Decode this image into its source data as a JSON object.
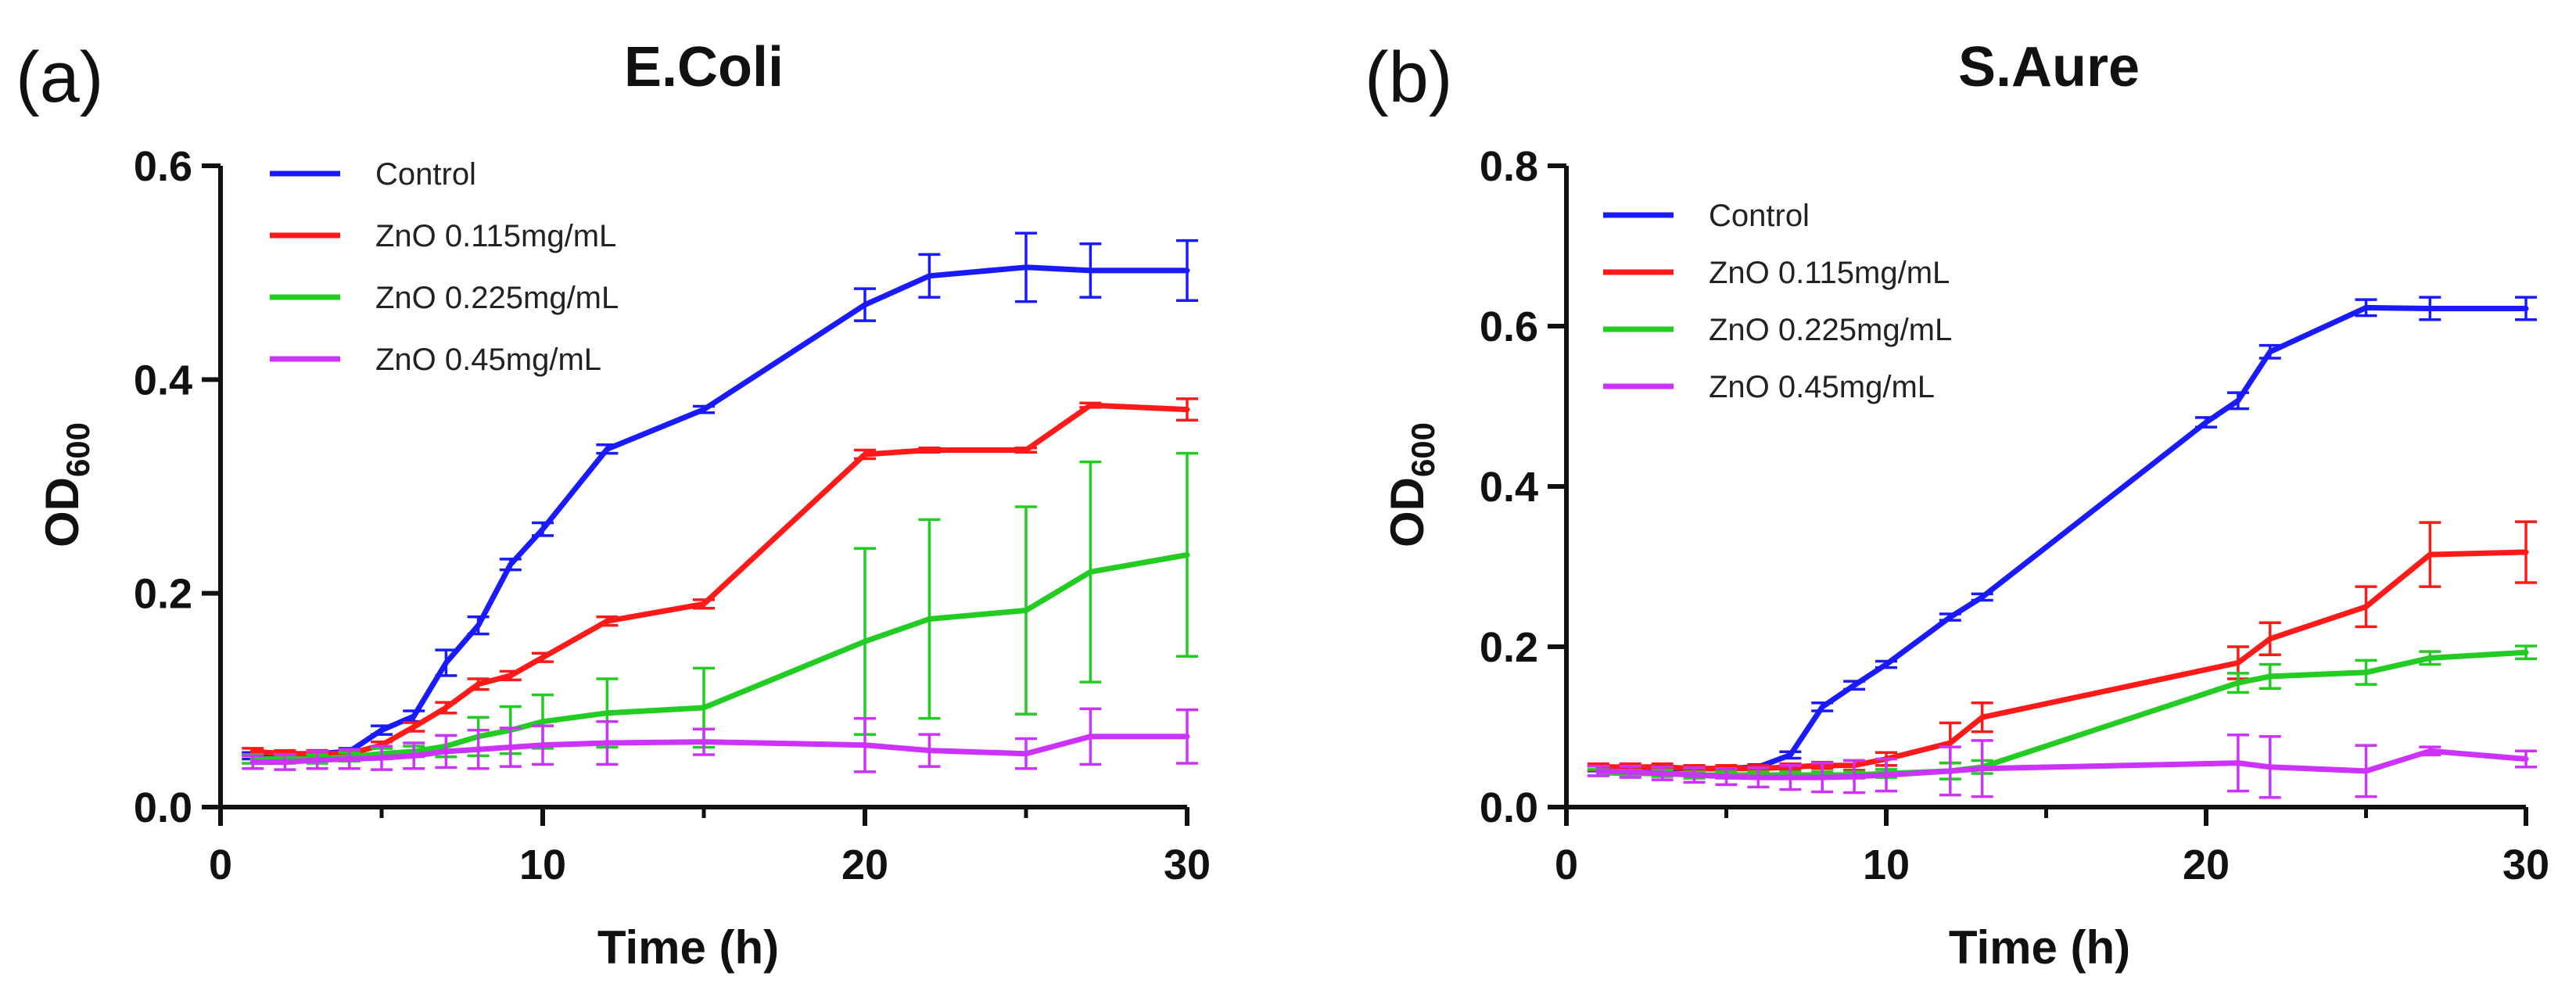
{
  "chart_data": [
    {
      "type": "line",
      "panel_label": "(a)",
      "title": "E.Coli",
      "xlabel": "Time (h)",
      "ylabel": "OD",
      "ylabel_sub": "600",
      "xlim": [
        0,
        30
      ],
      "ylim": [
        0,
        0.6
      ],
      "xticks": [
        0,
        10,
        20,
        30
      ],
      "yticks": [
        0.0,
        0.2,
        0.4,
        0.6
      ],
      "xtick_labels": [
        "0",
        "10",
        "20",
        "30"
      ],
      "ytick_labels": [
        "0.0",
        "0.2",
        "0.4",
        "0.6"
      ],
      "legend_position": "top-left",
      "series": [
        {
          "name": "Control",
          "color": "#1a1aff",
          "x": [
            1,
            2,
            3,
            4,
            5,
            6,
            7,
            8,
            9,
            10,
            12,
            15,
            20,
            22,
            25,
            27,
            30
          ],
          "y": [
            0.048,
            0.048,
            0.05,
            0.052,
            0.072,
            0.085,
            0.135,
            0.17,
            0.227,
            0.26,
            0.335,
            0.372,
            0.47,
            0.497,
            0.505,
            0.502,
            0.502
          ],
          "err": [
            0.003,
            0.003,
            0.003,
            0.003,
            0.004,
            0.005,
            0.012,
            0.008,
            0.005,
            0.006,
            0.004,
            0.003,
            0.015,
            0.02,
            0.032,
            0.025,
            0.028
          ]
        },
        {
          "name": "ZnO 0.115mg/mL",
          "color": "#ff1a1a",
          "x": [
            1,
            2,
            3,
            4,
            5,
            6,
            7,
            8,
            9,
            10,
            12,
            15,
            20,
            22,
            25,
            27,
            30
          ],
          "y": [
            0.052,
            0.05,
            0.05,
            0.05,
            0.058,
            0.075,
            0.093,
            0.115,
            0.123,
            0.14,
            0.174,
            0.19,
            0.33,
            0.334,
            0.334,
            0.376,
            0.372
          ],
          "err": [
            0.003,
            0.003,
            0.003,
            0.003,
            0.003,
            0.004,
            0.005,
            0.005,
            0.004,
            0.004,
            0.004,
            0.004,
            0.004,
            0.002,
            0.002,
            0.002,
            0.01
          ]
        },
        {
          "name": "ZnO 0.225mg/mL",
          "color": "#22cc22",
          "x": [
            1,
            2,
            3,
            4,
            5,
            6,
            7,
            8,
            9,
            10,
            12,
            15,
            20,
            22,
            25,
            27,
            30
          ],
          "y": [
            0.045,
            0.045,
            0.045,
            0.047,
            0.05,
            0.052,
            0.057,
            0.066,
            0.072,
            0.08,
            0.088,
            0.093,
            0.155,
            0.176,
            0.184,
            0.22,
            0.236
          ],
          "err": [
            0.004,
            0.004,
            0.004,
            0.004,
            0.005,
            0.005,
            0.01,
            0.018,
            0.022,
            0.025,
            0.032,
            0.037,
            0.087,
            0.093,
            0.097,
            0.103,
            0.095
          ]
        },
        {
          "name": "ZnO 0.45mg/mL",
          "color": "#cc33ff",
          "x": [
            1,
            2,
            3,
            4,
            5,
            6,
            7,
            8,
            9,
            10,
            12,
            15,
            20,
            22,
            25,
            27,
            30
          ],
          "y": [
            0.042,
            0.042,
            0.044,
            0.045,
            0.046,
            0.048,
            0.052,
            0.054,
            0.056,
            0.058,
            0.06,
            0.061,
            0.058,
            0.053,
            0.05,
            0.066,
            0.066
          ],
          "err": [
            0.006,
            0.007,
            0.008,
            0.009,
            0.011,
            0.012,
            0.015,
            0.018,
            0.018,
            0.018,
            0.02,
            0.012,
            0.025,
            0.015,
            0.014,
            0.026,
            0.025
          ]
        }
      ]
    },
    {
      "type": "line",
      "panel_label": "(b)",
      "title": "S.Aure",
      "xlabel": "Time (h)",
      "ylabel": "OD",
      "ylabel_sub": "600",
      "xlim": [
        0,
        30
      ],
      "ylim": [
        0,
        0.8
      ],
      "xticks": [
        0,
        10,
        20,
        30
      ],
      "yticks": [
        0.0,
        0.2,
        0.4,
        0.6,
        0.8
      ],
      "xtick_labels": [
        "0",
        "10",
        "20",
        "30"
      ],
      "ytick_labels": [
        "0.0",
        "0.2",
        "0.4",
        "0.6",
        "0.8"
      ],
      "legend_position": "top-left",
      "series": [
        {
          "name": "Control",
          "color": "#1a1aff",
          "x": [
            1,
            2,
            3,
            4,
            5,
            6,
            7,
            8,
            9,
            10,
            12,
            13,
            20,
            21,
            22,
            25,
            27,
            30
          ],
          "y": [
            0.048,
            0.048,
            0.048,
            0.048,
            0.048,
            0.05,
            0.065,
            0.125,
            0.152,
            0.178,
            0.237,
            0.262,
            0.48,
            0.507,
            0.568,
            0.623,
            0.622,
            0.622
          ],
          "err": [
            0.003,
            0.003,
            0.003,
            0.003,
            0.003,
            0.003,
            0.004,
            0.005,
            0.005,
            0.004,
            0.004,
            0.004,
            0.006,
            0.01,
            0.008,
            0.01,
            0.014,
            0.014
          ]
        },
        {
          "name": "ZnO 0.115mg/mL",
          "color": "#ff1a1a",
          "x": [
            1,
            2,
            3,
            4,
            5,
            6,
            7,
            8,
            9,
            10,
            12,
            13,
            21,
            22,
            25,
            27,
            30
          ],
          "y": [
            0.05,
            0.05,
            0.05,
            0.048,
            0.048,
            0.048,
            0.05,
            0.052,
            0.052,
            0.06,
            0.08,
            0.112,
            0.18,
            0.21,
            0.25,
            0.315,
            0.318
          ],
          "err": [
            0.004,
            0.004,
            0.004,
            0.004,
            0.004,
            0.004,
            0.004,
            0.004,
            0.006,
            0.008,
            0.025,
            0.018,
            0.02,
            0.02,
            0.025,
            0.04,
            0.038
          ]
        },
        {
          "name": "ZnO 0.225mg/mL",
          "color": "#22cc22",
          "x": [
            1,
            2,
            3,
            4,
            5,
            6,
            7,
            8,
            9,
            10,
            12,
            13,
            21,
            22,
            25,
            27,
            30
          ],
          "y": [
            0.043,
            0.042,
            0.042,
            0.04,
            0.04,
            0.04,
            0.04,
            0.04,
            0.04,
            0.042,
            0.045,
            0.05,
            0.155,
            0.163,
            0.168,
            0.186,
            0.193
          ],
          "err": [
            0.004,
            0.004,
            0.004,
            0.004,
            0.004,
            0.004,
            0.004,
            0.004,
            0.004,
            0.005,
            0.01,
            0.008,
            0.012,
            0.015,
            0.015,
            0.008,
            0.008
          ]
        },
        {
          "name": "ZnO 0.45mg/mL",
          "color": "#cc33ff",
          "x": [
            1,
            2,
            3,
            4,
            5,
            6,
            7,
            8,
            9,
            10,
            12,
            13,
            21,
            22,
            25,
            27,
            30
          ],
          "y": [
            0.045,
            0.044,
            0.042,
            0.04,
            0.038,
            0.037,
            0.037,
            0.037,
            0.038,
            0.04,
            0.045,
            0.048,
            0.055,
            0.05,
            0.045,
            0.07,
            0.06
          ],
          "err": [
            0.006,
            0.007,
            0.008,
            0.009,
            0.01,
            0.012,
            0.015,
            0.018,
            0.02,
            0.02,
            0.03,
            0.035,
            0.035,
            0.038,
            0.032,
            0.005,
            0.01
          ]
        }
      ]
    }
  ]
}
